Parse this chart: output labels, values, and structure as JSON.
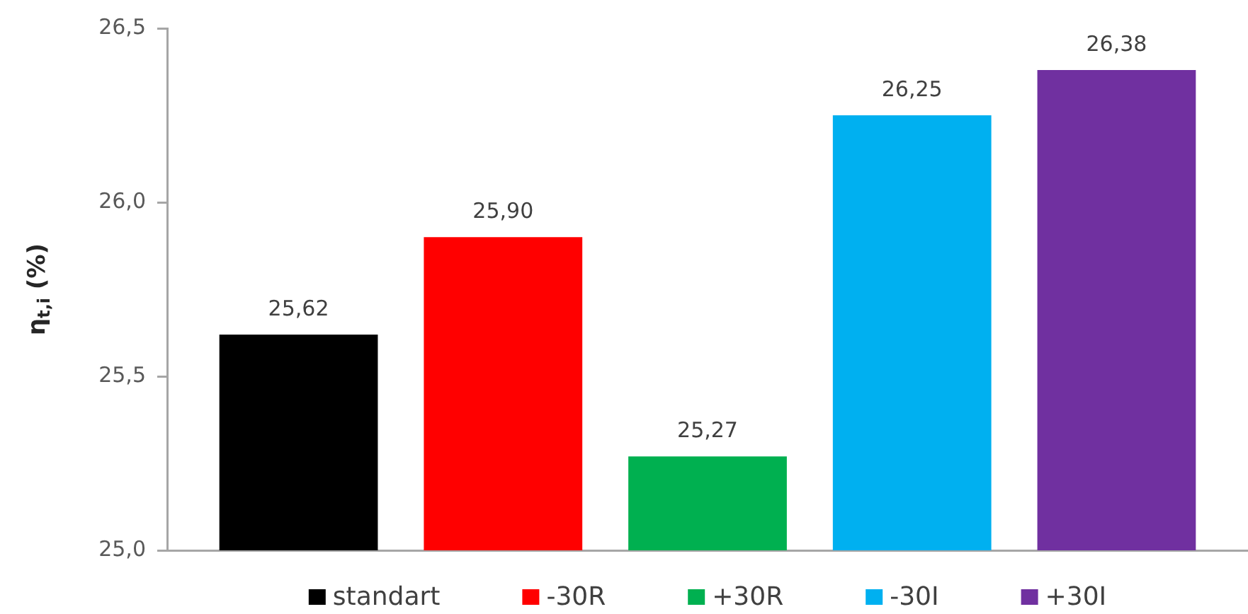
{
  "chart_data": {
    "type": "bar",
    "ylabel": "η$_{t,i}$ (%)",
    "categories": [
      null
    ],
    "series": [
      {
        "name": "standart",
        "color": "#000000",
        "values": [
          25.62
        ],
        "value_labels": [
          "25,62"
        ]
      },
      {
        "name": "-30R",
        "color": "#ff0000",
        "values": [
          25.9
        ],
        "value_labels": [
          "25,90"
        ]
      },
      {
        "name": "+30R",
        "color": "#00b050",
        "values": [
          25.27
        ],
        "value_labels": [
          "25,27"
        ]
      },
      {
        "name": "-30I",
        "color": "#00b0f0",
        "values": [
          26.25
        ],
        "value_labels": [
          "26,25"
        ]
      },
      {
        "name": "+30I",
        "color": "#7030a0",
        "values": [
          26.38
        ],
        "value_labels": [
          "26,38"
        ]
      }
    ],
    "ylim": [
      25,
      26.5
    ],
    "yticks": [
      {
        "value": 25,
        "label": "25,0"
      },
      {
        "value": 25.5,
        "label": "25,5"
      },
      {
        "value": 26,
        "label": "26,0"
      },
      {
        "value": 26.5,
        "label": "26,5"
      }
    ],
    "legend": "bottom",
    "tick_labels": "y"
  }
}
